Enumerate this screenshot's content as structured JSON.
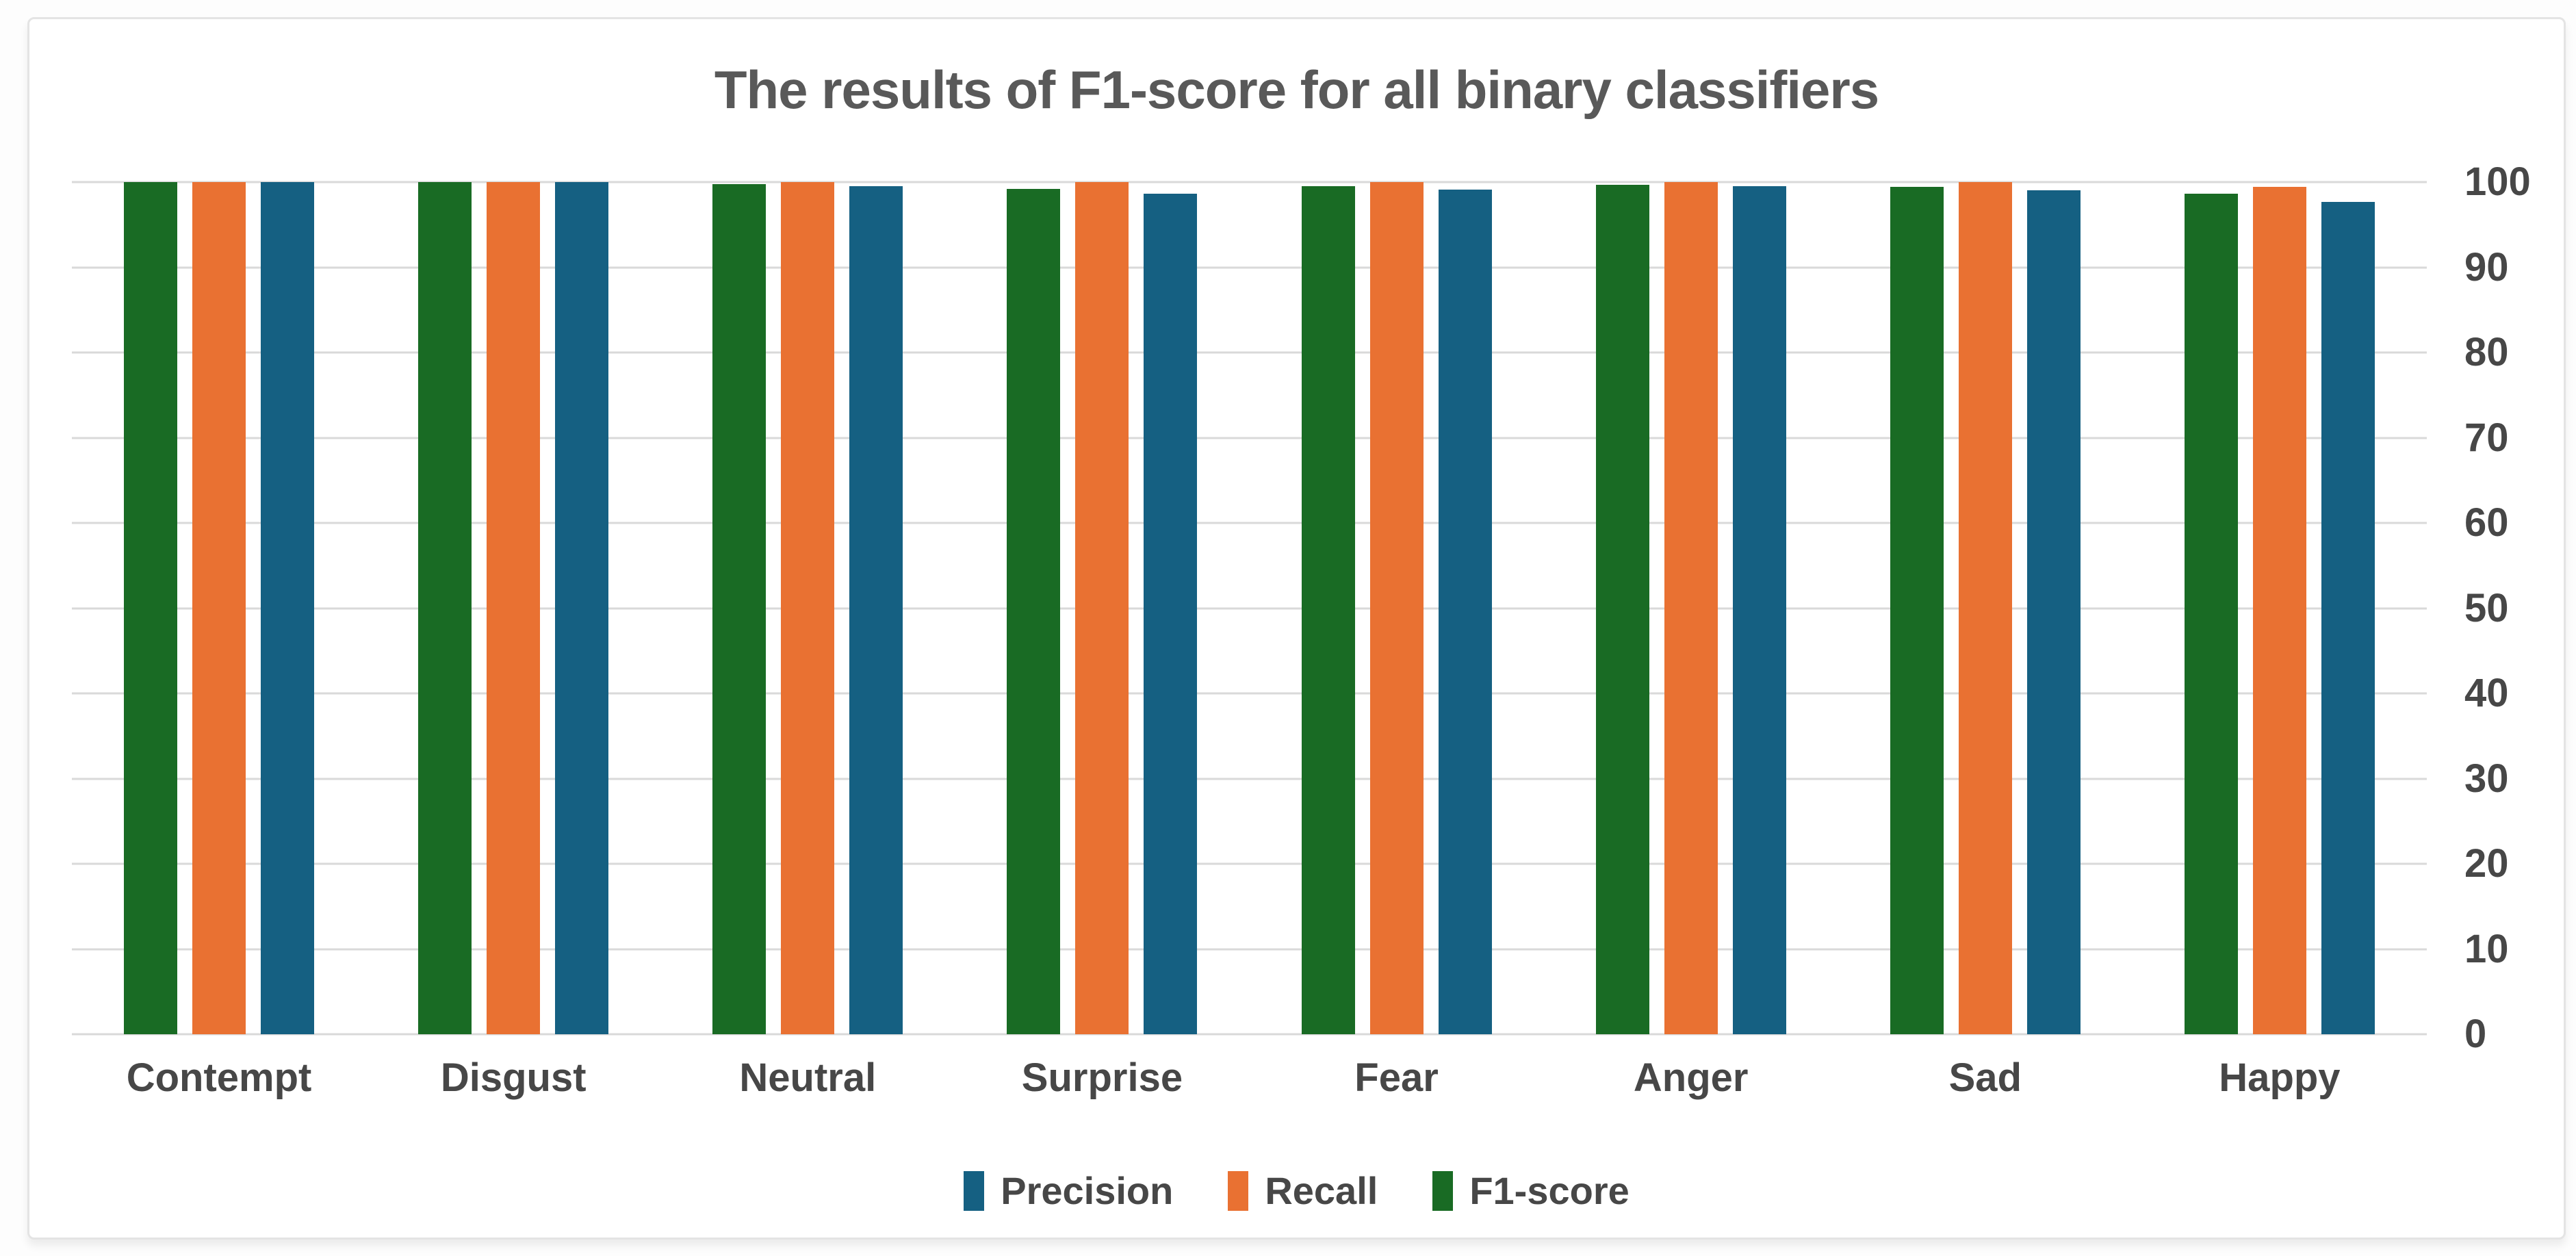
{
  "chart_data": {
    "type": "bar",
    "title": "The results of F1-score for all binary classifiers",
    "categories": [
      "Contempt",
      "Disgust",
      "Neutral",
      "Surprise",
      "Fear",
      "Anger",
      "Sad",
      "Happy"
    ],
    "series": [
      {
        "name": "F1-score",
        "color": "#196B24",
        "values": [
          100,
          100,
          99.8,
          99.2,
          99.5,
          99.7,
          99.4,
          98.6
        ]
      },
      {
        "name": "Recall",
        "color": "#E97132",
        "values": [
          100,
          100,
          100,
          100,
          100,
          100,
          100,
          99.4
        ]
      },
      {
        "name": "Precision",
        "color": "#156082",
        "values": [
          100,
          100,
          99.5,
          98.6,
          99.1,
          99.5,
          99.0,
          97.7
        ]
      }
    ],
    "ylim": [
      0,
      100
    ],
    "yticks": [
      0,
      10,
      20,
      30,
      40,
      50,
      60,
      70,
      80,
      90,
      100
    ],
    "y_axis_side": "right",
    "grid": true,
    "legend": {
      "position": "bottom",
      "items": [
        {
          "label": "Precision",
          "color": "#156082"
        },
        {
          "label": "Recall",
          "color": "#E97132"
        },
        {
          "label": "F1-score",
          "color": "#196B24"
        }
      ]
    },
    "styles": {
      "gridline_color": "#D9D9D9",
      "axis_text_color": "#474747",
      "title_color": "#595959",
      "card_background": "#ffffff"
    }
  }
}
